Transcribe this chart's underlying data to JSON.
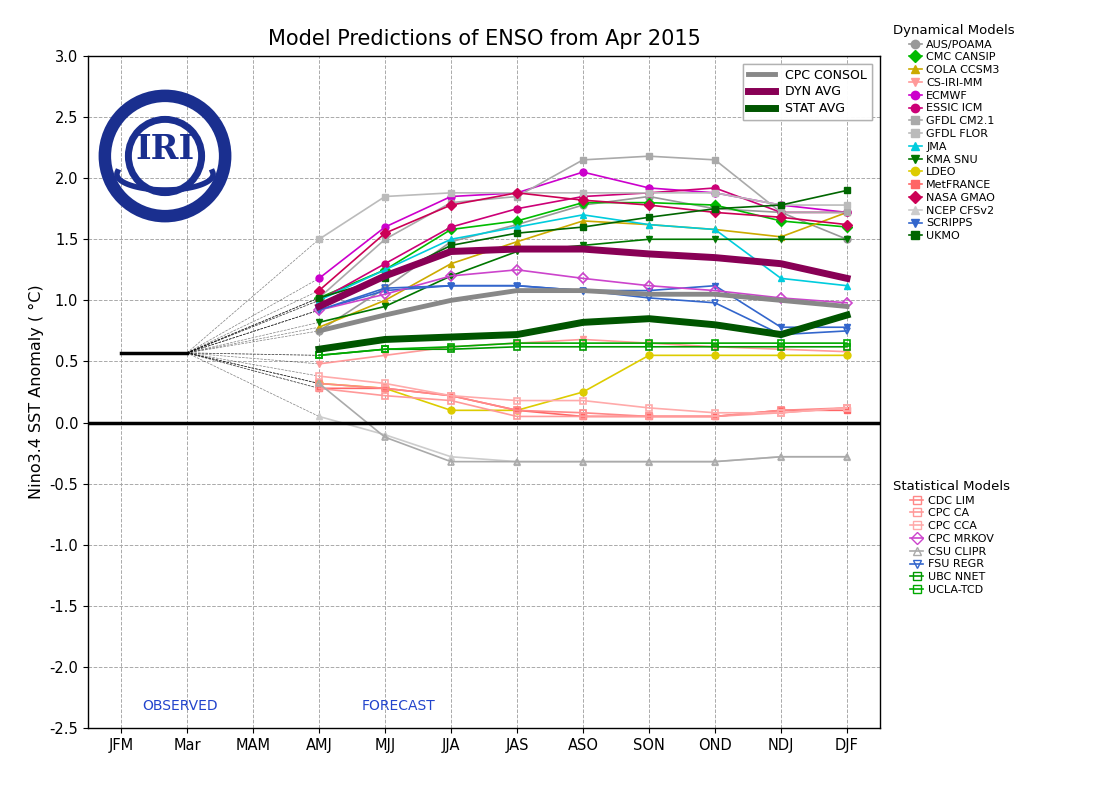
{
  "title": "Model Predictions of ENSO from Apr 2015",
  "ylabel": "Nino3.4 SST Anomaly ( °C)",
  "xtick_labels": [
    "JFM",
    "Mar",
    "MAM",
    "AMJ",
    "MJJ",
    "JJA",
    "JAS",
    "ASO",
    "SON",
    "OND",
    "NDJ",
    "DJF"
  ],
  "ylim": [
    -2.5,
    3.0
  ],
  "yticks": [
    -2.5,
    -2.0,
    -1.5,
    -1.0,
    -0.5,
    0.0,
    0.5,
    1.0,
    1.5,
    2.0,
    2.5,
    3.0
  ],
  "observed_label": "OBSERVED",
  "forecast_label": "FORECAST",
  "observed_value": 0.57,
  "dyn_avg_color": "#880055",
  "stat_avg_color": "#005500",
  "cpc_color": "#888888",
  "dyn_avg": [
    null,
    null,
    null,
    0.95,
    1.2,
    1.4,
    1.42,
    1.42,
    1.38,
    1.35,
    1.3,
    1.18
  ],
  "stat_avg": [
    null,
    null,
    null,
    0.6,
    0.68,
    0.7,
    0.72,
    0.82,
    0.85,
    0.8,
    0.72,
    0.88
  ],
  "cpc_consol": [
    null,
    null,
    null,
    0.75,
    0.88,
    1.0,
    1.08,
    1.08,
    1.05,
    1.05,
    1.0,
    0.95
  ],
  "dynamical_models": [
    {
      "name": "AUS/POAMA",
      "color": "#999999",
      "marker": "o",
      "lw": 1.2,
      "values": [
        null,
        null,
        null,
        0.75,
        1.1,
        1.48,
        1.62,
        1.78,
        1.85,
        1.75,
        1.72,
        1.5
      ]
    },
    {
      "name": "CMC CANSIP",
      "color": "#00bb00",
      "marker": "D",
      "lw": 1.2,
      "values": [
        null,
        null,
        null,
        1.02,
        1.25,
        1.58,
        1.65,
        1.8,
        1.8,
        1.78,
        1.65,
        1.6
      ]
    },
    {
      "name": "COLA CCSM3",
      "color": "#ccaa00",
      "marker": "^",
      "lw": 1.2,
      "values": [
        null,
        null,
        null,
        0.78,
        1.0,
        1.3,
        1.48,
        1.65,
        1.62,
        1.58,
        1.52,
        1.72
      ]
    },
    {
      "name": "CS-IRI-MM",
      "color": "#ff9999",
      "marker": "v",
      "lw": 1.2,
      "values": [
        null,
        null,
        null,
        0.48,
        0.55,
        0.62,
        0.65,
        0.68,
        0.65,
        0.62,
        0.6,
        0.58
      ]
    },
    {
      "name": "ECMWF",
      "color": "#cc00cc",
      "marker": "o",
      "lw": 1.2,
      "values": [
        null,
        null,
        null,
        1.18,
        1.6,
        1.85,
        1.88,
        2.05,
        1.92,
        1.88,
        1.78,
        1.72
      ]
    },
    {
      "name": "ESSIC ICM",
      "color": "#cc0077",
      "marker": "o",
      "lw": 1.2,
      "values": [
        null,
        null,
        null,
        1.0,
        1.3,
        1.6,
        1.75,
        1.85,
        1.88,
        1.92,
        1.72,
        1.72
      ]
    },
    {
      "name": "GFDL CM2.1",
      "color": "#aaaaaa",
      "marker": "s",
      "lw": 1.2,
      "values": [
        null,
        null,
        null,
        1.02,
        1.5,
        1.8,
        1.85,
        2.15,
        2.18,
        2.15,
        1.72,
        1.72
      ]
    },
    {
      "name": "GFDL FLOR",
      "color": "#bbbbbb",
      "marker": "s",
      "lw": 1.2,
      "values": [
        null,
        null,
        null,
        1.5,
        1.85,
        1.88,
        1.88,
        1.88,
        1.88,
        1.88,
        1.78,
        1.78
      ]
    },
    {
      "name": "JMA",
      "color": "#00ccdd",
      "marker": "^",
      "lw": 1.2,
      "values": [
        null,
        null,
        null,
        1.0,
        1.25,
        1.5,
        1.6,
        1.7,
        1.62,
        1.58,
        1.18,
        1.12
      ]
    },
    {
      "name": "KMA SNU",
      "color": "#007700",
      "marker": "v",
      "lw": 1.2,
      "values": [
        null,
        null,
        null,
        0.82,
        0.95,
        1.2,
        1.4,
        1.45,
        1.5,
        1.5,
        1.5,
        1.5
      ]
    },
    {
      "name": "LDEO",
      "color": "#ddcc00",
      "marker": "o",
      "lw": 1.2,
      "values": [
        null,
        null,
        null,
        0.32,
        0.28,
        0.1,
        0.1,
        0.25,
        0.55,
        0.55,
        0.55,
        0.55
      ]
    },
    {
      "name": "MetFRANCE",
      "color": "#ff6666",
      "marker": "s",
      "lw": 1.2,
      "values": [
        null,
        null,
        null,
        0.28,
        0.28,
        0.22,
        0.1,
        0.05,
        0.05,
        0.05,
        0.1,
        0.1
      ]
    },
    {
      "name": "NASA GMAO",
      "color": "#cc0055",
      "marker": "D",
      "lw": 1.2,
      "values": [
        null,
        null,
        null,
        1.08,
        1.55,
        1.78,
        1.88,
        1.82,
        1.78,
        1.72,
        1.68,
        1.62
      ]
    },
    {
      "name": "NCEP CFSv2",
      "color": "#cccccc",
      "marker": "^",
      "lw": 1.2,
      "values": [
        null,
        null,
        null,
        0.05,
        -0.1,
        -0.28,
        -0.32,
        -0.32,
        -0.32,
        -0.32,
        -0.28,
        -0.28
      ]
    },
    {
      "name": "SCRIPPS",
      "color": "#3366cc",
      "marker": "v",
      "lw": 1.2,
      "values": [
        null,
        null,
        null,
        0.92,
        1.08,
        1.12,
        1.12,
        1.08,
        1.08,
        1.12,
        0.78,
        0.78
      ]
    },
    {
      "name": "UKMO",
      "color": "#006600",
      "marker": "s",
      "lw": 1.2,
      "values": [
        null,
        null,
        null,
        1.02,
        1.18,
        1.45,
        1.55,
        1.6,
        1.68,
        1.75,
        1.78,
        1.9
      ]
    }
  ],
  "statistical_models": [
    {
      "name": "CDC LIM",
      "color": "#ff8888",
      "marker": "s",
      "values": [
        null,
        null,
        null,
        0.32,
        0.28,
        0.22,
        0.1,
        0.08,
        0.05,
        0.05,
        0.1,
        0.12
      ]
    },
    {
      "name": "CPC CA",
      "color": "#ff9999",
      "marker": "s",
      "values": [
        null,
        null,
        null,
        0.28,
        0.22,
        0.18,
        0.05,
        0.05,
        0.05,
        0.05,
        0.08,
        0.12
      ]
    },
    {
      "name": "CPC CCA",
      "color": "#ffaaaa",
      "marker": "s",
      "values": [
        null,
        null,
        null,
        0.38,
        0.32,
        0.22,
        0.18,
        0.18,
        0.12,
        0.08,
        0.08,
        0.12
      ]
    },
    {
      "name": "CPC MRKOV",
      "color": "#cc44cc",
      "marker": "D",
      "values": [
        null,
        null,
        null,
        0.92,
        1.05,
        1.2,
        1.25,
        1.18,
        1.12,
        1.08,
        1.02,
        0.98
      ]
    },
    {
      "name": "CSU CLIPR",
      "color": "#aaaaaa",
      "marker": "^",
      "values": [
        null,
        null,
        null,
        0.32,
        -0.12,
        -0.32,
        -0.32,
        -0.32,
        -0.32,
        -0.32,
        -0.28,
        -0.28
      ]
    },
    {
      "name": "FSU REGR",
      "color": "#3366cc",
      "marker": "v",
      "values": [
        null,
        null,
        null,
        0.92,
        1.1,
        1.12,
        1.12,
        1.08,
        1.02,
        0.98,
        0.72,
        0.75
      ]
    },
    {
      "name": "UBC NNET",
      "color": "#009900",
      "marker": "s",
      "values": [
        null,
        null,
        null,
        0.55,
        0.6,
        0.6,
        0.62,
        0.62,
        0.62,
        0.62,
        0.62,
        0.62
      ]
    },
    {
      "name": "UCLA-TCD",
      "color": "#00aa00",
      "marker": "s",
      "values": [
        null,
        null,
        null,
        0.55,
        0.6,
        0.62,
        0.65,
        0.65,
        0.65,
        0.65,
        0.65,
        0.65
      ]
    }
  ],
  "background_color": "#ffffff",
  "grid_color": "#aaaaaa"
}
